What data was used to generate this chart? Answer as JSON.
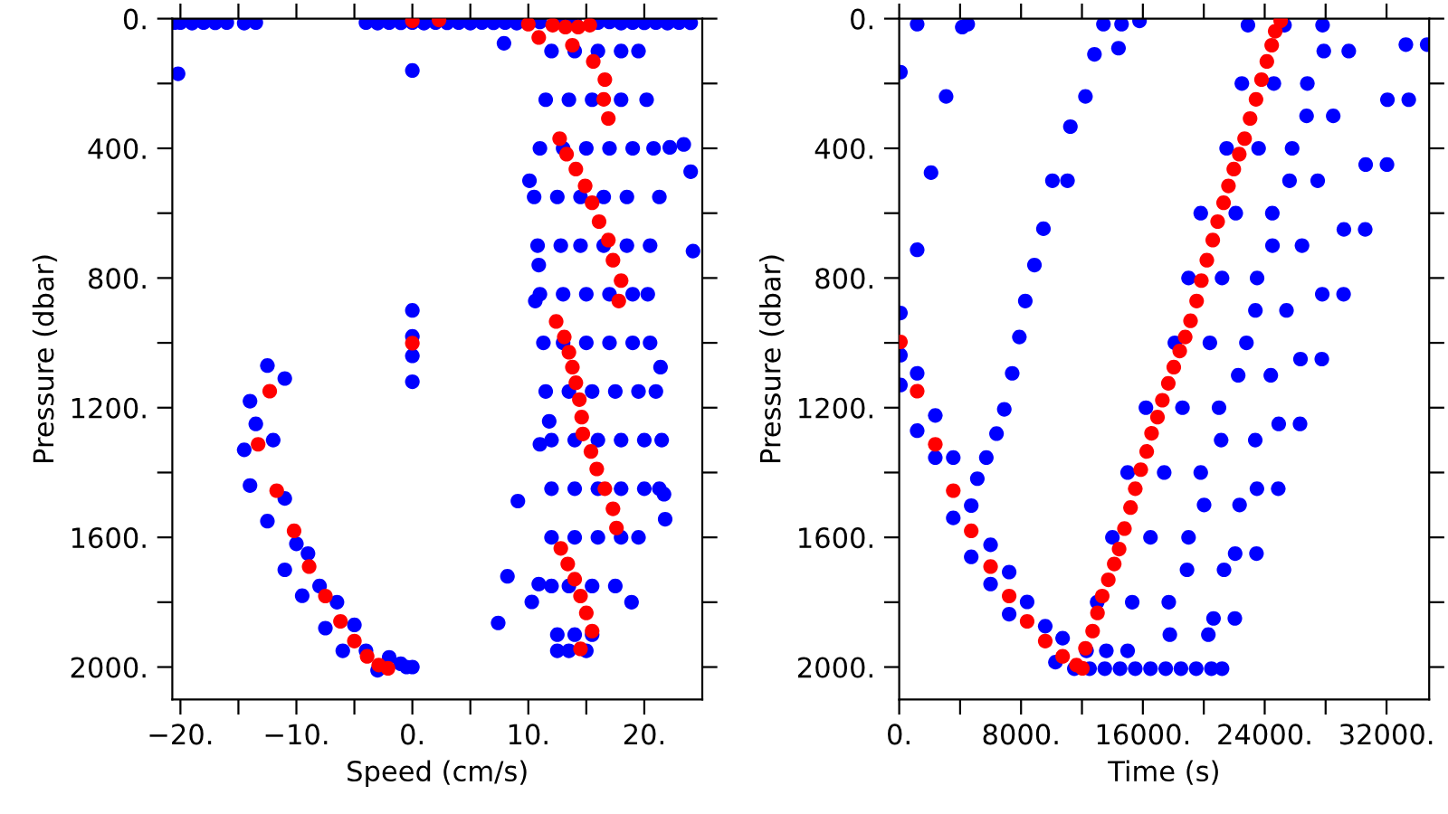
{
  "chart_data": [
    {
      "type": "scatter",
      "xlabel": "Speed (cm/s)",
      "ylabel": "Pressure (dbar)",
      "marker": "circle",
      "grid": false,
      "xlim": [
        -20.7,
        25
      ],
      "ylim": [
        2100,
        0
      ],
      "xticks": [
        {
          "value": -20,
          "label": "−20."
        },
        {
          "value": -15,
          "label": null
        },
        {
          "value": -10,
          "label": "−10."
        },
        {
          "value": -5,
          "label": null
        },
        {
          "value": 0,
          "label": "0."
        },
        {
          "value": 5,
          "label": null
        },
        {
          "value": 10,
          "label": "10."
        },
        {
          "value": 15,
          "label": null
        },
        {
          "value": 20,
          "label": "20."
        }
      ],
      "yticks": [
        {
          "value": 0,
          "label": "0."
        },
        {
          "value": 200,
          "label": null
        },
        {
          "value": 400,
          "label": "400."
        },
        {
          "value": 600,
          "label": null
        },
        {
          "value": 800,
          "label": "800."
        },
        {
          "value": 1000,
          "label": null
        },
        {
          "value": 1200,
          "label": "1200."
        },
        {
          "value": 1400,
          "label": null
        },
        {
          "value": 1600,
          "label": "1600."
        },
        {
          "value": 1800,
          "label": null
        },
        {
          "value": 2000,
          "label": "2000."
        }
      ],
      "series": [
        {
          "color": "#0000ff",
          "x": [
            -20.5,
            -20,
            -19,
            -18,
            -17,
            -16,
            -14.5,
            -13.5,
            -4,
            -3,
            -2,
            -1,
            0,
            1,
            2,
            3,
            4,
            5,
            6,
            7,
            8,
            9,
            11,
            13,
            14,
            16,
            17,
            18,
            19,
            20,
            21,
            22,
            23,
            24,
            -20.2,
            0,
            0,
            0,
            0,
            0,
            7.9,
            9.1,
            8.2,
            7.4,
            10.3,
            10.9,
            11,
            11.8,
            10.6,
            10.9,
            10.1,
            23.4,
            22.2,
            24,
            24.2,
            21.4,
            21.7,
            21.8,
            18.9,
            12,
            14,
            16,
            18,
            19.5,
            11.5,
            13.5,
            15.5,
            18,
            20.2,
            11,
            13,
            15,
            17,
            19,
            20.8,
            10.5,
            12.5,
            14.5,
            16.5,
            18.5,
            21.3,
            10.8,
            12.8,
            14.5,
            16.5,
            18.5,
            20.5,
            11,
            13,
            15,
            17,
            19,
            20.3,
            11.3,
            13,
            15,
            17,
            19,
            20.5,
            11.5,
            13.5,
            15.5,
            17.5,
            19.5,
            21,
            12,
            14,
            16,
            18,
            20,
            21.5,
            12,
            14,
            16,
            18,
            20,
            21.3,
            12,
            14,
            16,
            18,
            19.5,
            12,
            13.5,
            15.5,
            17.5,
            12.5,
            14,
            15.5,
            12.5,
            13.5,
            15,
            -12.5,
            -11,
            -14,
            -13.5,
            -14.5,
            -12,
            -14,
            -11,
            -12.5,
            -10,
            -11,
            -9,
            -8,
            -9.5,
            -6.5,
            -7.5,
            -5,
            -4,
            -6,
            -2,
            -1,
            -0.5,
            -3,
            0
          ],
          "values": [
            12,
            12,
            14,
            12,
            13,
            12,
            14,
            12,
            12,
            14,
            12,
            13,
            12,
            14,
            12,
            13,
            12,
            14,
            12,
            13,
            12,
            14,
            10,
            12,
            10,
            12,
            10,
            14,
            12,
            13,
            12,
            14,
            12,
            13,
            170,
            160,
            900,
            980,
            1040,
            1120,
            76,
            1488,
            1720,
            1864,
            1799,
            1744,
            1313,
            1242,
            871,
            760,
            500,
            388,
            397,
            472,
            717,
            1075,
            1467,
            1544,
            1800,
            100,
            100,
            100,
            100,
            100,
            250,
            250,
            250,
            250,
            250,
            400,
            400,
            400,
            400,
            400,
            400,
            550,
            550,
            550,
            550,
            550,
            550,
            700,
            700,
            700,
            700,
            700,
            700,
            850,
            850,
            850,
            850,
            850,
            850,
            1000,
            1000,
            1000,
            1000,
            1000,
            1000,
            1150,
            1150,
            1150,
            1150,
            1150,
            1150,
            1300,
            1300,
            1300,
            1300,
            1300,
            1300,
            1450,
            1450,
            1450,
            1450,
            1450,
            1450,
            1600,
            1600,
            1600,
            1600,
            1600,
            1750,
            1750,
            1750,
            1750,
            1900,
            1900,
            1900,
            1950,
            1950,
            1950,
            1070,
            1110,
            1180,
            1250,
            1330,
            1300,
            1440,
            1480,
            1550,
            1620,
            1700,
            1650,
            1750,
            1780,
            1800,
            1880,
            1870,
            1950,
            1950,
            1970,
            1990,
            2000,
            2010,
            2000
          ]
        },
        {
          "color": "#ff0000",
          "x": [
            0,
            2.3,
            10,
            10.9,
            12.1,
            13.2,
            13.8,
            14.3,
            15.3,
            15.6,
            16.6,
            16.5,
            16.9,
            12.7,
            13.3,
            14.1,
            14.9,
            15.5,
            16.1,
            16.9,
            17.3,
            18,
            17.8,
            12.4,
            13.1,
            13.5,
            13.8,
            14.1,
            14.4,
            14.6,
            14.7,
            15.4,
            15.9,
            16.6,
            17.3,
            17.6,
            12.8,
            13.4,
            14,
            14.5,
            15,
            15.5,
            14.5,
            0,
            -12.3,
            -13.3,
            -11.7,
            -10.2,
            -8.9,
            -7.5,
            -6.2,
            -5,
            -3.9,
            -2.9,
            -2.1
          ],
          "values": [
            7,
            4,
            17,
            58,
            20,
            26,
            82,
            26,
            20,
            132,
            188,
            249,
            308,
            370,
            418,
            464,
            516,
            568,
            626,
            683,
            745,
            808,
            871,
            934,
            982,
            1029,
            1075,
            1123,
            1175,
            1229,
            1281,
            1335,
            1389,
            1450,
            1512,
            1571,
            1634,
            1682,
            1729,
            1781,
            1833,
            1889,
            1944,
            1001,
            1149,
            1313,
            1456,
            1580,
            1690,
            1781,
            1859,
            1920,
            1967,
            1994,
            2004
          ]
        }
      ]
    },
    {
      "type": "scatter",
      "xlabel": "Time (s)",
      "ylabel": "Pressure (dbar)",
      "marker": "circle",
      "grid": false,
      "xlim": [
        0,
        34800
      ],
      "ylim": [
        2100,
        0
      ],
      "xticks": [
        {
          "value": 0,
          "label": "0."
        },
        {
          "value": 4000,
          "label": null
        },
        {
          "value": 8000,
          "label": "8000."
        },
        {
          "value": 12000,
          "label": null
        },
        {
          "value": 16000,
          "label": "16000."
        },
        {
          "value": 20000,
          "label": null
        },
        {
          "value": 24000,
          "label": "24000."
        },
        {
          "value": 28000,
          "label": null
        },
        {
          "value": 32000,
          "label": "32000."
        }
      ],
      "yticks": [
        {
          "value": 0,
          "label": "0."
        },
        {
          "value": 200,
          "label": null
        },
        {
          "value": 400,
          "label": "400."
        },
        {
          "value": 600,
          "label": null
        },
        {
          "value": 800,
          "label": "800."
        },
        {
          "value": 1000,
          "label": null
        },
        {
          "value": 1200,
          "label": "1200."
        },
        {
          "value": 1400,
          "label": null
        },
        {
          "value": 1600,
          "label": "1600."
        },
        {
          "value": 1800,
          "label": null
        },
        {
          "value": 2000,
          "label": "2000."
        }
      ],
      "series": [
        {
          "color": "#0000ff",
          "x": [
            80,
            80,
            80,
            80,
            1180,
            1180,
            3080,
            2090,
            4140,
            4500,
            1180,
            1180,
            2370,
            2370,
            3550,
            3550,
            4730,
            4730,
            6000,
            6000,
            7220,
            7220,
            8400,
            9590,
            10730,
            10260,
            11500,
            12500,
            13500,
            14500,
            15500,
            16500,
            17500,
            18500,
            19500,
            20500,
            21200,
            5130,
            5720,
            6390,
            6900,
            7420,
            7890,
            8280,
            8880,
            9470,
            10060,
            11050,
            11240,
            12230,
            12820,
            13410,
            14400,
            15780,
            14600,
            12300,
            13600,
            15000,
            13000,
            15300,
            17700,
            14000,
            16500,
            19000,
            15000,
            17400,
            19800,
            16200,
            18600,
            21000,
            18100,
            20400,
            22800,
            19000,
            21200,
            23500,
            19800,
            22100,
            24500,
            21500,
            23600,
            25800,
            22500,
            24600,
            26800,
            22900,
            25300,
            27800,
            17770,
            18900,
            20020,
            21140,
            22260,
            23390,
            24510,
            25630,
            26750,
            27880,
            20300,
            21330,
            22350,
            23380,
            24400,
            25430,
            26450,
            27480,
            28500,
            29520,
            20640,
            22040,
            22060,
            23460,
            23490,
            24890,
            24920,
            26320,
            26350,
            27750,
            27780,
            29180,
            29200,
            30600,
            30630,
            32030,
            32060,
            33460,
            33270,
            34670
          ],
          "values": [
            908,
            1038,
            1130,
            165,
            713,
            17,
            240,
            475,
            26,
            17,
            1094,
            1271,
            1224,
            1354,
            1354,
            1540,
            1502,
            1660,
            1623,
            1744,
            1707,
            1837,
            1799,
            1874,
            1911,
            1985,
            2005,
            2005,
            2005,
            2005,
            2005,
            2005,
            2005,
            2005,
            2005,
            2005,
            2005,
            1419,
            1354,
            1280,
            1205,
            1094,
            982,
            871,
            760,
            648,
            500,
            500,
            333,
            240,
            110,
            17,
            91,
            7,
            17,
            1950,
            1950,
            1950,
            1800,
            1800,
            1800,
            1600,
            1600,
            1600,
            1400,
            1400,
            1400,
            1200,
            1200,
            1200,
            1000,
            1000,
            1000,
            800,
            800,
            800,
            600,
            600,
            600,
            400,
            400,
            400,
            200,
            200,
            200,
            20,
            20,
            20,
            1900,
            1700,
            1500,
            1300,
            1100,
            900,
            700,
            500,
            300,
            100,
            1900,
            1700,
            1500,
            1300,
            1100,
            900,
            700,
            500,
            300,
            100,
            1850,
            1850,
            1650,
            1650,
            1450,
            1450,
            1250,
            1250,
            1050,
            1050,
            850,
            850,
            650,
            650,
            450,
            450,
            250,
            250,
            80,
            80
          ]
        },
        {
          "color": "#ff0000",
          "x": [
            80,
            1180,
            2370,
            3550,
            4730,
            6000,
            7220,
            8400,
            9590,
            10730,
            11640,
            12030,
            12230,
            12700,
            13020,
            13330,
            13730,
            14120,
            14440,
            14790,
            15190,
            15500,
            15860,
            16250,
            16570,
            16960,
            17280,
            17670,
            18030,
            18420,
            18780,
            19130,
            19530,
            19840,
            20200,
            20590,
            20910,
            21300,
            21620,
            21970,
            22330,
            22680,
            23040,
            23430,
            23790,
            24140,
            24460,
            24690,
            25050
          ],
          "values": [
            997,
            1149,
            1313,
            1456,
            1580,
            1690,
            1781,
            1859,
            1920,
            1967,
            1994,
            2004,
            1942,
            1889,
            1833,
            1781,
            1731,
            1682,
            1636,
            1573,
            1508,
            1450,
            1391,
            1335,
            1279,
            1229,
            1177,
            1125,
            1075,
            1025,
            982,
            932,
            871,
            808,
            745,
            683,
            626,
            568,
            516,
            464,
            418,
            370,
            308,
            249,
            188,
            132,
            82,
            39,
            7
          ]
        }
      ]
    }
  ]
}
